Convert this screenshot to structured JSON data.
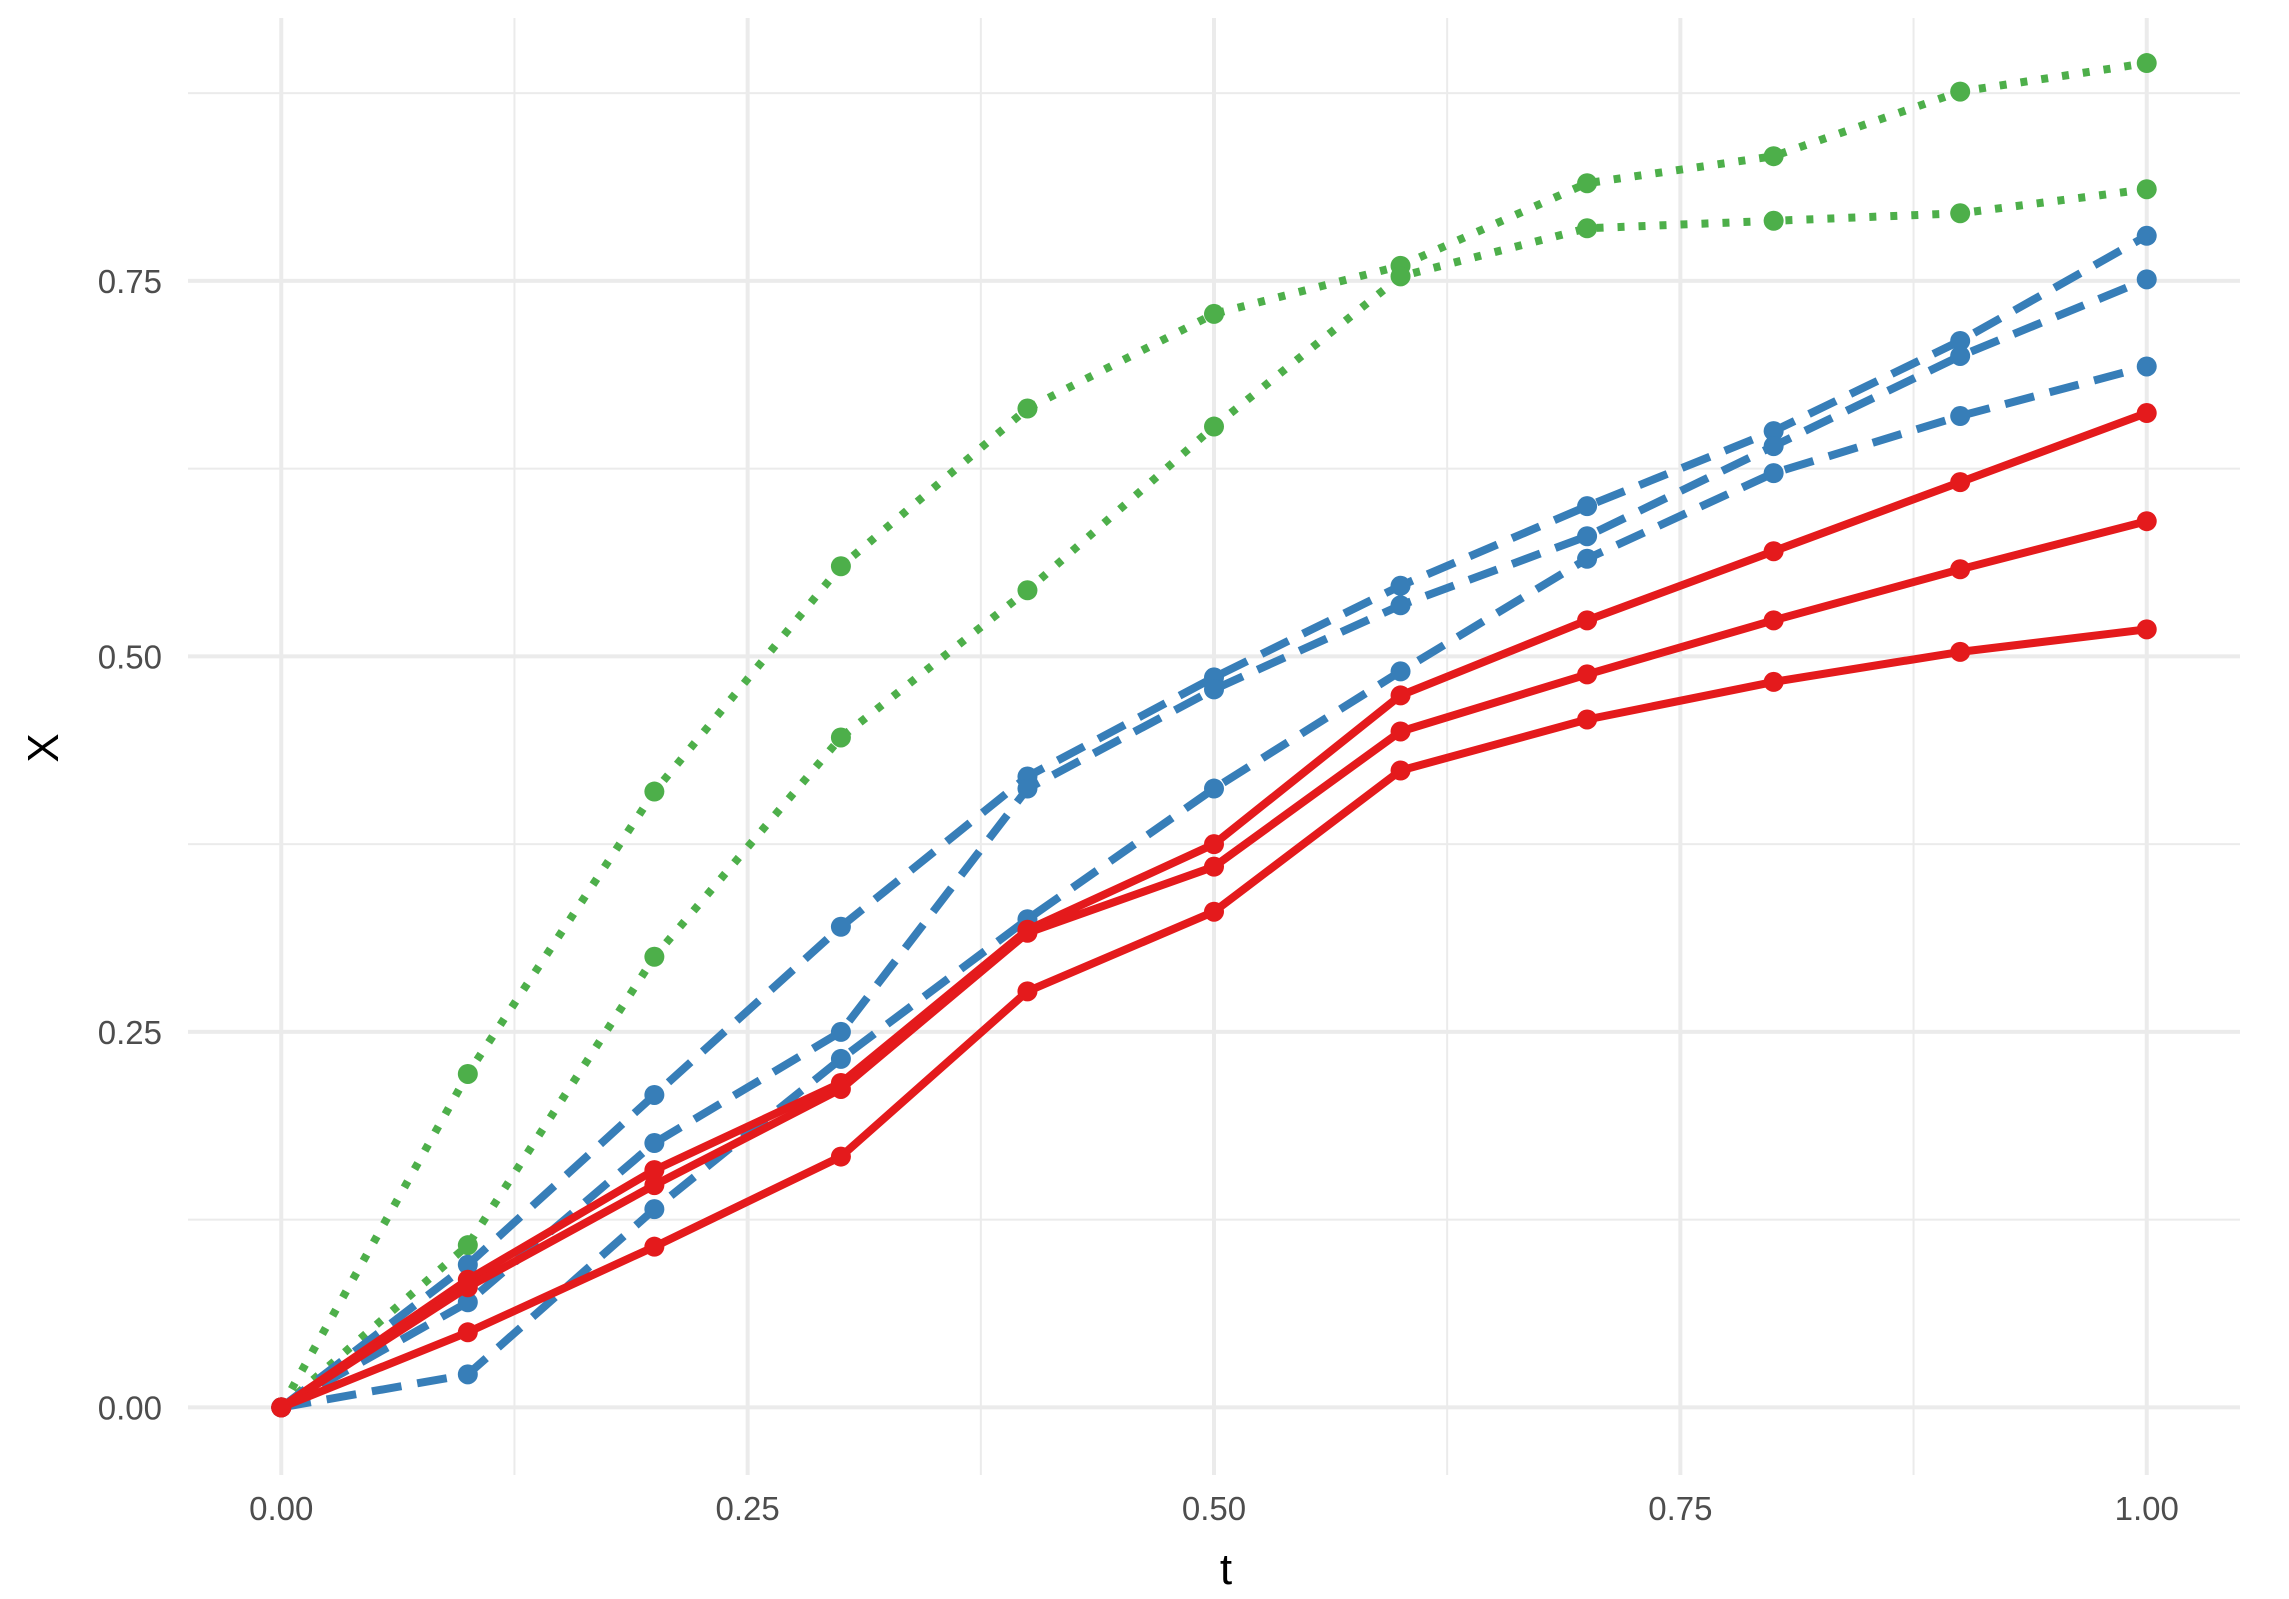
{
  "chart_data": {
    "type": "line",
    "title": "",
    "xlabel": "t",
    "ylabel": "X",
    "xlim": [
      -0.05,
      1.05
    ],
    "ylim": [
      -0.045,
      0.925
    ],
    "x_ticks": [
      {
        "value": 0.0,
        "label": "0.00"
      },
      {
        "value": 0.25,
        "label": "0.25"
      },
      {
        "value": 0.5,
        "label": "0.50"
      },
      {
        "value": 0.75,
        "label": "0.75"
      },
      {
        "value": 1.0,
        "label": "1.00"
      }
    ],
    "y_ticks": [
      {
        "value": 0.0,
        "label": "0.00"
      },
      {
        "value": 0.25,
        "label": "0.25"
      },
      {
        "value": 0.5,
        "label": "0.50"
      },
      {
        "value": 0.75,
        "label": "0.75"
      }
    ],
    "x_minor": [
      0.125,
      0.375,
      0.625,
      0.875
    ],
    "y_minor": [
      0.125,
      0.375,
      0.625,
      0.875
    ],
    "grid": true,
    "legend": "none",
    "x": [
      0.0,
      0.1,
      0.2,
      0.3,
      0.4,
      0.5,
      0.6,
      0.7,
      0.8,
      0.9,
      1.0
    ],
    "series": [
      {
        "group": "green",
        "color": "#4DAF4A",
        "dash": "dotted",
        "values": [
          0.0,
          0.222,
          0.41,
          0.56,
          0.665,
          0.728,
          0.76,
          0.815,
          0.833,
          0.876,
          0.895
        ]
      },
      {
        "group": "green",
        "color": "#4DAF4A",
        "dash": "dotted",
        "values": [
          0.0,
          0.108,
          0.3,
          0.446,
          0.544,
          0.653,
          0.753,
          0.785,
          0.79,
          0.795,
          0.811
        ]
      },
      {
        "group": "blue",
        "color": "#377EB8",
        "dash": "dashed",
        "values": [
          0.0,
          0.095,
          0.208,
          0.32,
          0.42,
          0.486,
          0.547,
          0.6,
          0.65,
          0.71,
          0.78
        ]
      },
      {
        "group": "blue",
        "color": "#377EB8",
        "dash": "dashed",
        "values": [
          0.0,
          0.07,
          0.176,
          0.25,
          0.412,
          0.478,
          0.534,
          0.58,
          0.64,
          0.7,
          0.751
        ]
      },
      {
        "group": "blue",
        "color": "#377EB8",
        "dash": "dashed",
        "values": [
          0.0,
          0.022,
          0.132,
          0.232,
          0.325,
          0.412,
          0.49,
          0.565,
          0.622,
          0.66,
          0.693
        ]
      },
      {
        "group": "red",
        "color": "#E41A1C",
        "dash": "solid",
        "values": [
          0.0,
          0.085,
          0.158,
          0.216,
          0.318,
          0.375,
          0.474,
          0.524,
          0.57,
          0.616,
          0.662
        ]
      },
      {
        "group": "red",
        "color": "#E41A1C",
        "dash": "solid",
        "values": [
          0.0,
          0.08,
          0.148,
          0.212,
          0.316,
          0.36,
          0.45,
          0.488,
          0.524,
          0.558,
          0.59
        ]
      },
      {
        "group": "red",
        "color": "#E41A1C",
        "dash": "solid",
        "values": [
          0.0,
          0.05,
          0.107,
          0.167,
          0.277,
          0.33,
          0.424,
          0.458,
          0.483,
          0.503,
          0.518
        ]
      }
    ]
  }
}
